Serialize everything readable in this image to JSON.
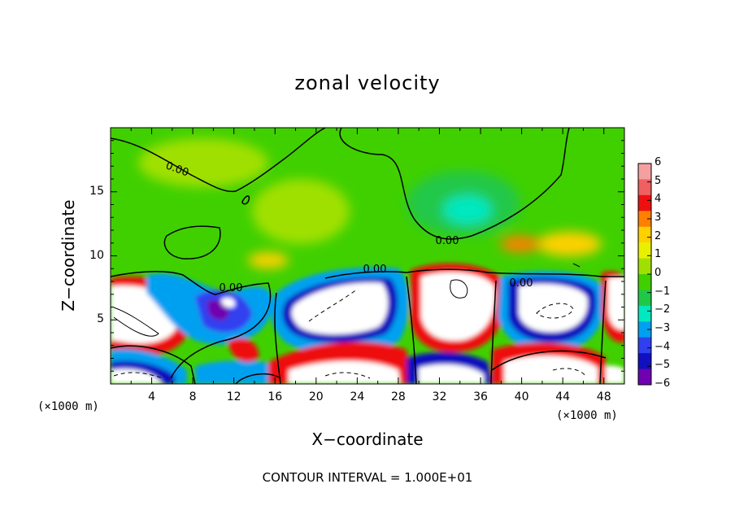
{
  "chart_data": {
    "type": "heatmap",
    "title": "zonal velocity",
    "xlabel": "X−coordinate",
    "ylabel": "Z−coordinate",
    "x_unit_left": "(×1000 m)",
    "x_unit_right": "(×1000 m)",
    "x_ticks": [
      4,
      8,
      12,
      16,
      20,
      24,
      28,
      32,
      36,
      40,
      44,
      48
    ],
    "y_ticks": [
      5,
      10,
      15
    ],
    "xlim": [
      0,
      50
    ],
    "ylim": [
      0,
      20
    ],
    "colorbar": {
      "ticks": [
        6,
        5,
        4,
        3,
        2,
        1,
        0,
        -1,
        -2,
        -3,
        -4,
        -5,
        -6
      ],
      "range": [
        -6,
        6
      ],
      "colors": [
        "#f4a0a0",
        "#f06060",
        "#ee1010",
        "#ff8000",
        "#ffd000",
        "#e8f000",
        "#a0e000",
        "#40d000",
        "#20c848",
        "#00e8c0",
        "#00a0f0",
        "#3040f0",
        "#1010c0",
        "#7000b0"
      ]
    },
    "contour_labels": [
      "0.00",
      "0.00",
      "0.00",
      "0.00",
      "0.00"
    ],
    "contour_note": "CONTOUR INTERVAL = 1.000E+01"
  }
}
